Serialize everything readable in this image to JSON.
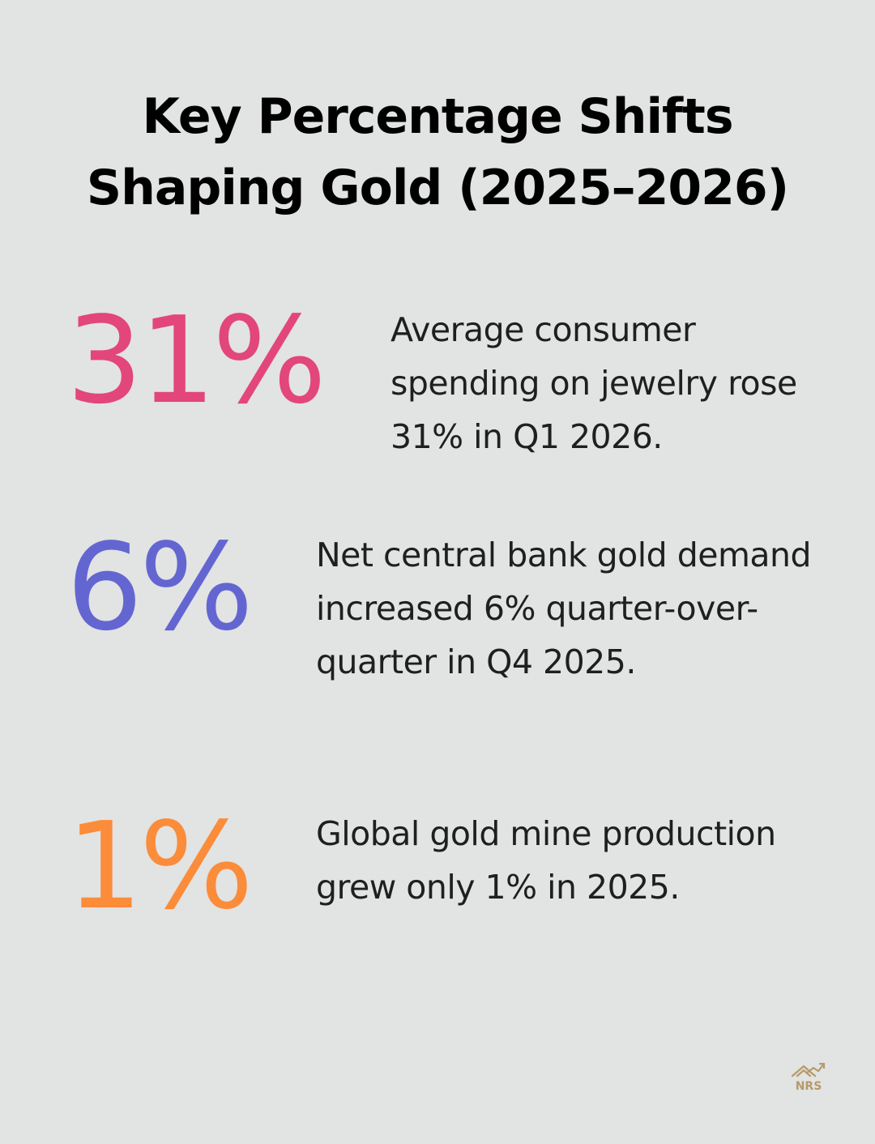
{
  "title": {
    "line1": "Key Percentage Shifts",
    "line2": "Shaping Gold (2025–2026)"
  },
  "stats": [
    {
      "value": "31%",
      "description": "Average consumer spending on jewelry rose 31% in Q1 2026.",
      "color": "#e2467b"
    },
    {
      "value": "6%",
      "description": "Net central bank gold demand increased 6% quarter-over-quarter in Q4 2025.",
      "color": "#6366d1"
    },
    {
      "value": "1%",
      "description": "Global gold mine production grew only 1% in 2025.",
      "color": "#fb8c3a"
    }
  ],
  "logo": {
    "text": "NRS",
    "icon": "house-chart-icon",
    "color": "#b79a6a"
  },
  "colors": {
    "background": "#e2e3e3",
    "title": "#000000",
    "body_text": "#1f1f1f"
  }
}
